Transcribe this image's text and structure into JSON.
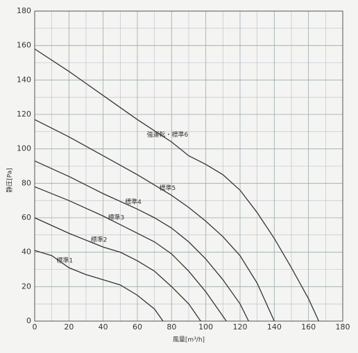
{
  "chart_data": {
    "type": "line",
    "xlabel": "風量[m³/h]",
    "ylabel": "静圧[Pa]",
    "xlim": [
      0,
      180
    ],
    "ylim": [
      0,
      180
    ],
    "xticks": [
      0,
      20,
      40,
      60,
      80,
      100,
      120,
      140,
      160,
      180
    ],
    "yticks": [
      0,
      20,
      40,
      60,
      80,
      100,
      120,
      140,
      160,
      180
    ],
    "minor_ticks": [
      10,
      30,
      50,
      70,
      90,
      110,
      130,
      150,
      170
    ],
    "grid": true,
    "series": [
      {
        "name": "強運転・標準6",
        "color": "#333333",
        "x": [
          0,
          20,
          40,
          60,
          80,
          90,
          100,
          110,
          120,
          130,
          140,
          150,
          160,
          166
        ],
        "values": [
          158,
          145,
          131,
          117,
          104,
          96,
          91,
          85,
          76,
          63,
          48,
          31,
          13,
          0
        ]
      },
      {
        "name": "標準5",
        "color": "#333333",
        "x": [
          0,
          20,
          40,
          60,
          70,
          80,
          90,
          100,
          110,
          120,
          130,
          140
        ],
        "values": [
          117,
          107,
          96,
          85,
          79,
          73,
          66,
          58,
          49,
          38,
          22,
          0
        ]
      },
      {
        "name": "標準4",
        "color": "#333333",
        "x": [
          0,
          20,
          40,
          60,
          70,
          80,
          90,
          100,
          110,
          120,
          125
        ],
        "values": [
          93,
          84,
          74,
          65,
          60,
          54,
          46,
          36,
          24,
          10,
          0
        ]
      },
      {
        "name": "標準3",
        "color": "#333333",
        "x": [
          0,
          20,
          40,
          50,
          60,
          70,
          80,
          90,
          100,
          112
        ],
        "values": [
          78,
          70,
          61,
          56,
          51,
          46,
          39,
          29,
          17,
          0
        ]
      },
      {
        "name": "標準2",
        "color": "#333333",
        "x": [
          0,
          20,
          40,
          50,
          60,
          70,
          80,
          90,
          97
        ],
        "values": [
          60,
          51,
          43,
          40,
          35,
          29,
          20,
          10,
          0
        ]
      },
      {
        "name": "標準1",
        "color": "#333333",
        "x": [
          0,
          10,
          20,
          30,
          40,
          50,
          60,
          70,
          75
        ],
        "values": [
          41,
          38,
          31,
          27,
          24,
          21,
          15,
          7,
          0
        ]
      }
    ]
  }
}
